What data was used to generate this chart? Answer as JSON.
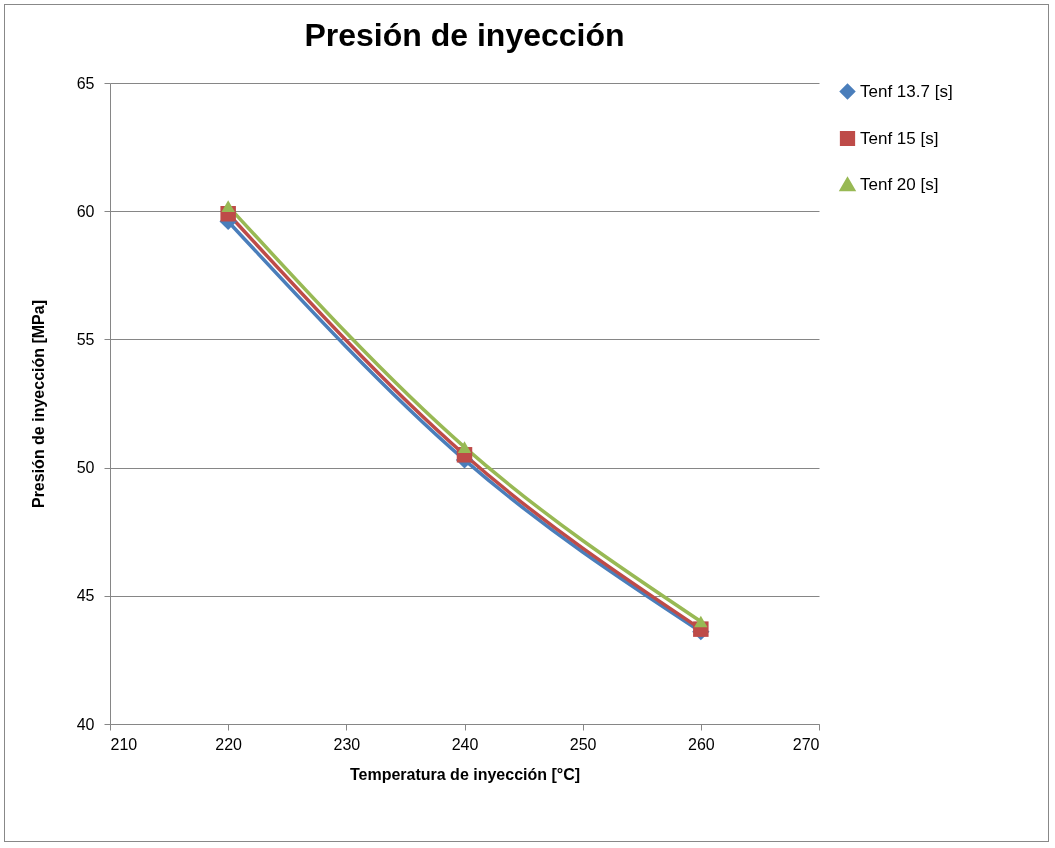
{
  "chart_data": {
    "type": "line",
    "title": "Presión de inyección",
    "xlabel": "Temperatura de inyección [°C]",
    "ylabel": "Presión de inyección [MPa]",
    "x": [
      220,
      240,
      260
    ],
    "series": [
      {
        "name": "Tenf 13.7 [s]",
        "color": "#4a7ebb",
        "marker": "diamond",
        "values": [
          59.6,
          50.3,
          43.6
        ]
      },
      {
        "name": "Tenf 15 [s]",
        "color": "#be4b48",
        "marker": "square",
        "values": [
          59.9,
          50.5,
          43.7
        ]
      },
      {
        "name": "Tenf 20 [s]",
        "color": "#98b954",
        "marker": "triangle",
        "values": [
          60.2,
          50.8,
          44.0
        ]
      }
    ],
    "xlim": [
      210,
      270
    ],
    "xticks": [
      210,
      220,
      230,
      240,
      250,
      260,
      270
    ],
    "ylim": [
      40,
      65
    ],
    "yticks": [
      40,
      45,
      50,
      55,
      60,
      65
    ],
    "grid": "y",
    "legend": "right",
    "line_style": "solid"
  }
}
